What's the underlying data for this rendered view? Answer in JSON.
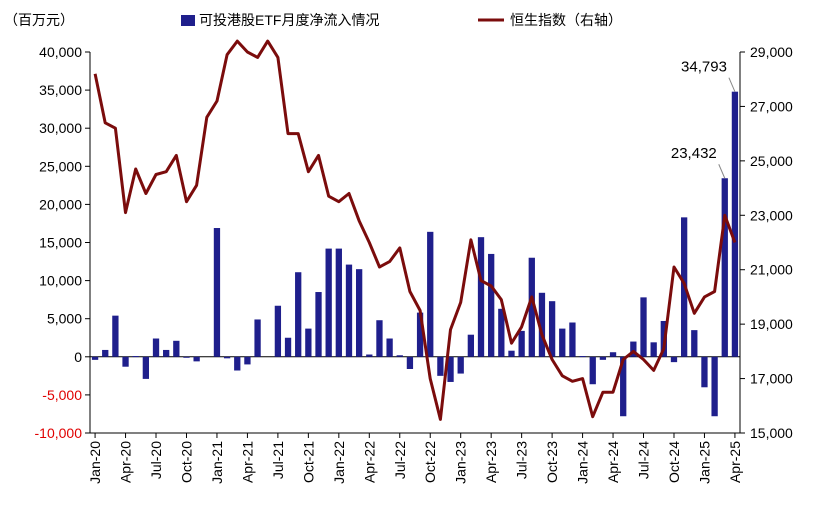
{
  "chart_data": {
    "type": "bar+line",
    "unit_label": "（百万元）",
    "legend": {
      "bar": "可投港股ETF月度净流入情况",
      "line": "恒生指数（右轴）",
      "placement": "top"
    },
    "colors": {
      "bar": "#1f1f8c",
      "line": "#7b0c0c",
      "negative_tick": "#e00000",
      "axis": "#000000"
    },
    "months": [
      "Jan-20",
      "Feb-20",
      "Mar-20",
      "Apr-20",
      "May-20",
      "Jun-20",
      "Jul-20",
      "Aug-20",
      "Sep-20",
      "Oct-20",
      "Nov-20",
      "Dec-20",
      "Jan-21",
      "Feb-21",
      "Mar-21",
      "Apr-21",
      "May-21",
      "Jun-21",
      "Jul-21",
      "Aug-21",
      "Sep-21",
      "Oct-21",
      "Nov-21",
      "Dec-21",
      "Jan-22",
      "Feb-22",
      "Mar-22",
      "Apr-22",
      "May-22",
      "Jun-22",
      "Jul-22",
      "Aug-22",
      "Sep-22",
      "Oct-22",
      "Nov-22",
      "Dec-22",
      "Jan-23",
      "Feb-23",
      "Mar-23",
      "Apr-23",
      "May-23",
      "Jun-23",
      "Jul-23",
      "Aug-23",
      "Sep-23",
      "Oct-23",
      "Nov-23",
      "Dec-23",
      "Jan-24",
      "Feb-24",
      "Mar-24",
      "Apr-24",
      "May-24",
      "Jun-24",
      "Jul-24",
      "Aug-24",
      "Sep-24",
      "Oct-24",
      "Nov-24",
      "Dec-24",
      "Jan-25",
      "Feb-25",
      "Mar-25",
      "Apr-25"
    ],
    "x_tick_labels": [
      "Jan-20",
      "Apr-20",
      "Jul-20",
      "Oct-20",
      "Jan-21",
      "Apr-21",
      "Jul-21",
      "Oct-21",
      "Jan-22",
      "Apr-22",
      "Jul-22",
      "Oct-22",
      "Jan-23",
      "Apr-23",
      "Jul-23",
      "Oct-23",
      "Jan-24",
      "Apr-24",
      "Jul-24",
      "Oct-24",
      "Jan-25",
      "Apr-25"
    ],
    "left_axis": {
      "min": -10000,
      "max": 40000,
      "step": 5000,
      "tick_labels": [
        "-10,000",
        "-5,000",
        "0",
        "5,000",
        "10,000",
        "15,000",
        "20,000",
        "25,000",
        "30,000",
        "35,000",
        "40,000"
      ]
    },
    "right_axis": {
      "min": 15000,
      "max": 29000,
      "step": 2000,
      "tick_labels": [
        "15,000",
        "17,000",
        "19,000",
        "21,000",
        "23,000",
        "25,000",
        "27,000",
        "29,000"
      ]
    },
    "series": [
      {
        "name": "可投港股ETF月度净流入情况",
        "axis": "left",
        "type": "bar",
        "values": [
          -400,
          900,
          5400,
          -1300,
          100,
          -2900,
          2400,
          900,
          2100,
          -100,
          -600,
          0,
          16900,
          -200,
          -1800,
          -1000,
          4900,
          0,
          6700,
          2500,
          11100,
          3700,
          8500,
          14200,
          14200,
          12100,
          11500,
          300,
          4800,
          2400,
          200,
          -1600,
          5800,
          16400,
          -2500,
          -3300,
          -2200,
          2900,
          15700,
          13500,
          6300,
          800,
          3400,
          13000,
          8400,
          7300,
          3700,
          4500,
          100,
          -3600,
          -400,
          600,
          -7800,
          2000,
          7800,
          1900,
          4700,
          -700,
          18300,
          3500,
          -4000,
          -7800,
          23432,
          34793
        ]
      },
      {
        "name": "恒生指数（右轴）",
        "axis": "right",
        "type": "line",
        "values": [
          28200,
          26400,
          26200,
          23100,
          24700,
          23800,
          24500,
          24600,
          25200,
          23500,
          24100,
          26600,
          27200,
          28900,
          29400,
          29000,
          28800,
          29400,
          28800,
          26000,
          26000,
          24600,
          25200,
          23700,
          23500,
          23800,
          22800,
          22000,
          21100,
          21300,
          21800,
          20200,
          19500,
          17000,
          15500,
          18800,
          19800,
          22100,
          20600,
          20400,
          19900,
          18300,
          18900,
          20000,
          18600,
          17700,
          17100,
          16900,
          17000,
          15600,
          16500,
          16500,
          17700,
          18000,
          17700,
          17300,
          18100,
          21100,
          20500,
          19400,
          20000,
          20200,
          23000,
          22000
        ]
      }
    ],
    "annotations": [
      {
        "text": "34,793",
        "month": "Apr-25"
      },
      {
        "text": "23,432",
        "month": "Mar-25"
      }
    ]
  }
}
